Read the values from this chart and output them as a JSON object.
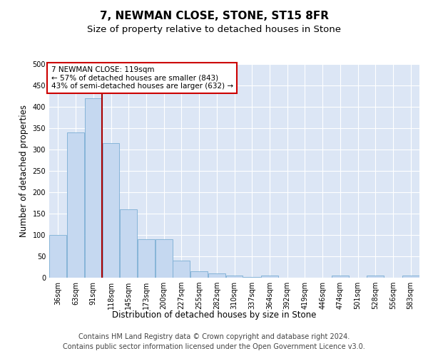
{
  "title": "7, NEWMAN CLOSE, STONE, ST15 8FR",
  "subtitle": "Size of property relative to detached houses in Stone",
  "xlabel": "Distribution of detached houses by size in Stone",
  "ylabel": "Number of detached properties",
  "categories": [
    "36sqm",
    "63sqm",
    "91sqm",
    "118sqm",
    "145sqm",
    "173sqm",
    "200sqm",
    "227sqm",
    "255sqm",
    "282sqm",
    "310sqm",
    "337sqm",
    "364sqm",
    "392sqm",
    "419sqm",
    "446sqm",
    "474sqm",
    "501sqm",
    "528sqm",
    "556sqm",
    "583sqm"
  ],
  "values": [
    100,
    340,
    420,
    315,
    160,
    90,
    90,
    40,
    15,
    10,
    5,
    2,
    5,
    0,
    0,
    0,
    5,
    0,
    5,
    0,
    5
  ],
  "bar_color": "#c5d8f0",
  "bar_edge_color": "#7aadd4",
  "background_color": "#dce6f5",
  "grid_color": "#ffffff",
  "vline_color": "#aa0000",
  "annotation_text": "7 NEWMAN CLOSE: 119sqm\n← 57% of detached houses are smaller (843)\n43% of semi-detached houses are larger (632) →",
  "annotation_box_facecolor": "#ffffff",
  "annotation_box_edgecolor": "#cc0000",
  "footer_line1": "Contains HM Land Registry data © Crown copyright and database right 2024.",
  "footer_line2": "Contains public sector information licensed under the Open Government Licence v3.0.",
  "ylim": [
    0,
    500
  ],
  "yticks": [
    0,
    50,
    100,
    150,
    200,
    250,
    300,
    350,
    400,
    450,
    500
  ],
  "title_fontsize": 11,
  "subtitle_fontsize": 9.5,
  "axis_label_fontsize": 8.5,
  "tick_fontsize": 7,
  "footer_fontsize": 7,
  "fig_bg": "#ffffff"
}
